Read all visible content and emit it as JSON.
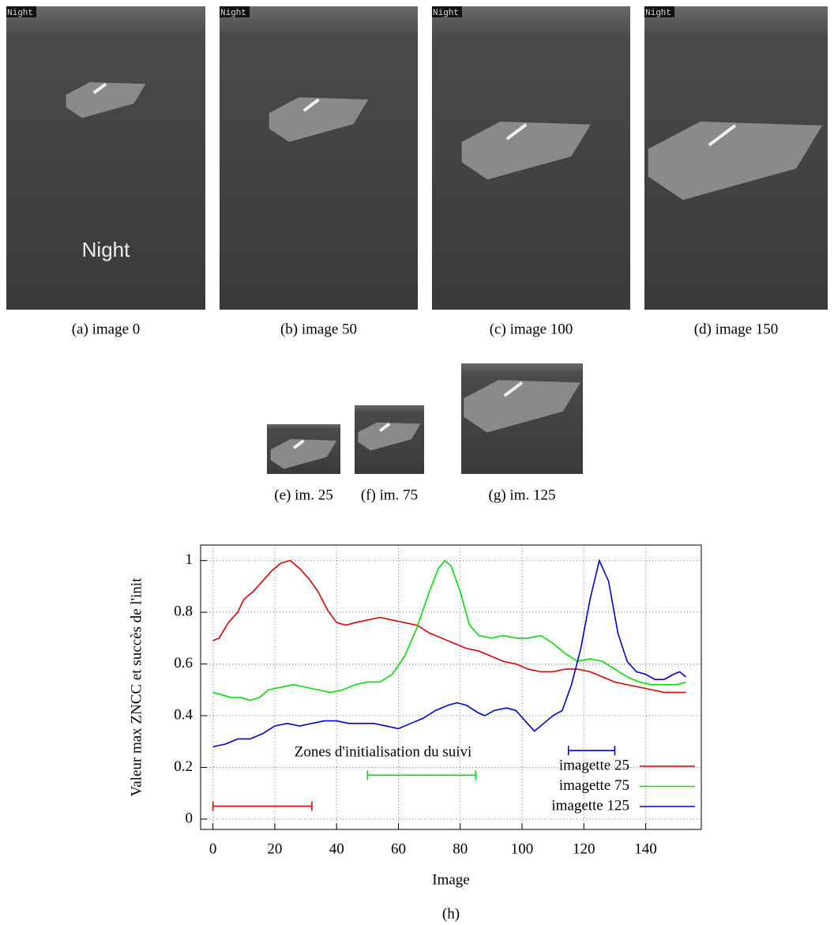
{
  "figures": [
    {
      "caption": "(a) image 0",
      "tag": "Night",
      "overlay": "Night"
    },
    {
      "caption": "(b) image 50",
      "tag": "Night"
    },
    {
      "caption": "(c) image 100",
      "tag": "Night"
    },
    {
      "caption": "(d) image 150",
      "tag": "Night"
    },
    {
      "caption": "(e) im. 25"
    },
    {
      "caption": "(f) im. 75"
    },
    {
      "caption": "(g) im. 125"
    }
  ],
  "chart_data": {
    "type": "line",
    "caption": "(h)",
    "xlabel": "Image",
    "ylabel": "Valeur max ZNCC et succès de l'init",
    "xlim": [
      -4,
      158
    ],
    "ylim": [
      -0.04,
      1.06
    ],
    "xticks": [
      0,
      20,
      40,
      60,
      80,
      100,
      120,
      140
    ],
    "yticks": [
      0,
      0.2,
      0.4,
      0.6,
      0.8,
      1
    ],
    "grid": true,
    "legend": "lower right",
    "series": [
      {
        "name": "imagette 25",
        "color": "#e00000",
        "x": [
          0,
          2,
          5,
          8,
          10,
          13,
          16,
          19,
          22,
          25,
          28,
          31,
          34,
          37,
          40,
          43,
          46,
          50,
          54,
          58,
          62,
          66,
          70,
          74,
          78,
          82,
          86,
          90,
          94,
          98,
          102,
          106,
          110,
          114,
          118,
          122,
          126,
          130,
          134,
          138,
          142,
          146,
          150,
          153
        ],
        "values": [
          0.69,
          0.7,
          0.76,
          0.8,
          0.85,
          0.88,
          0.92,
          0.96,
          0.99,
          1,
          0.97,
          0.93,
          0.88,
          0.81,
          0.76,
          0.75,
          0.76,
          0.77,
          0.78,
          0.77,
          0.76,
          0.75,
          0.72,
          0.7,
          0.68,
          0.66,
          0.65,
          0.63,
          0.61,
          0.6,
          0.58,
          0.57,
          0.57,
          0.58,
          0.58,
          0.57,
          0.55,
          0.53,
          0.52,
          0.51,
          0.5,
          0.49,
          0.49,
          0.49
        ]
      },
      {
        "name": "imagette 75",
        "color": "#00e000",
        "x": [
          0,
          3,
          6,
          9,
          12,
          15,
          18,
          22,
          26,
          30,
          34,
          38,
          42,
          46,
          50,
          54,
          58,
          62,
          66,
          70,
          73,
          75,
          77,
          80,
          83,
          86,
          90,
          94,
          98,
          102,
          106,
          110,
          114,
          118,
          122,
          126,
          130,
          134,
          138,
          142,
          146,
          150,
          153
        ],
        "values": [
          0.49,
          0.48,
          0.47,
          0.47,
          0.46,
          0.47,
          0.5,
          0.51,
          0.52,
          0.51,
          0.5,
          0.49,
          0.5,
          0.52,
          0.53,
          0.53,
          0.56,
          0.63,
          0.74,
          0.88,
          0.97,
          1,
          0.98,
          0.88,
          0.75,
          0.71,
          0.7,
          0.71,
          0.7,
          0.7,
          0.71,
          0.68,
          0.64,
          0.61,
          0.62,
          0.61,
          0.58,
          0.55,
          0.53,
          0.52,
          0.52,
          0.52,
          0.53
        ]
      },
      {
        "name": "imagette 125",
        "color": "#0000d0",
        "x": [
          0,
          4,
          8,
          12,
          16,
          20,
          24,
          28,
          32,
          36,
          40,
          44,
          48,
          52,
          56,
          60,
          64,
          68,
          72,
          76,
          79,
          82,
          86,
          88,
          91,
          95,
          98,
          101,
          104,
          107,
          110,
          113,
          116,
          119,
          122,
          125,
          128,
          131,
          134,
          137,
          140,
          143,
          146,
          149,
          151,
          153
        ],
        "values": [
          0.28,
          0.29,
          0.31,
          0.31,
          0.33,
          0.36,
          0.37,
          0.36,
          0.37,
          0.38,
          0.38,
          0.37,
          0.37,
          0.37,
          0.36,
          0.35,
          0.37,
          0.39,
          0.42,
          0.44,
          0.45,
          0.44,
          0.41,
          0.4,
          0.42,
          0.43,
          0.42,
          0.38,
          0.34,
          0.37,
          0.4,
          0.42,
          0.52,
          0.66,
          0.85,
          1,
          0.92,
          0.72,
          0.61,
          0.57,
          0.56,
          0.54,
          0.54,
          0.56,
          0.57,
          0.55
        ]
      }
    ],
    "annotation": "Zones d'initialisation du suivi",
    "zones": [
      {
        "start": 0,
        "end": 32,
        "y": 0.05,
        "color": "#e00000"
      },
      {
        "start": 50,
        "end": 85,
        "y": 0.17,
        "color": "#00e000"
      },
      {
        "start": 115,
        "end": 130,
        "y": 0.265,
        "color": "#0000d0"
      }
    ]
  }
}
